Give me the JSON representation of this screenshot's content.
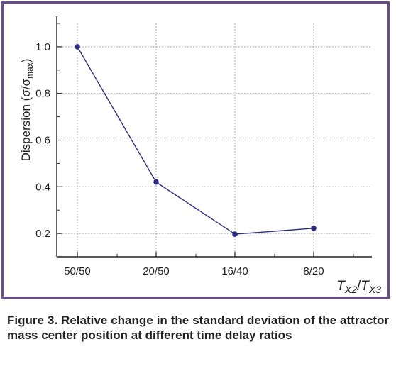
{
  "chart_data": {
    "type": "line",
    "categories": [
      "50/50",
      "20/50",
      "16/40",
      "8/20"
    ],
    "values": [
      1.0,
      0.42,
      0.197,
      0.222
    ],
    "ylabel": "Dispersion (σ/σmax)",
    "ylabel_parts": {
      "main": "Dispersion (σ/σ",
      "sub": "max",
      "close": ")"
    },
    "xlabel": "TX2/TX3",
    "xlabel_parts": {
      "t1": "T",
      "s1": "X2",
      "slash": "/",
      "t2": "T",
      "s2": "X3"
    },
    "y_ticks": [
      "0.2",
      "0.4",
      "0.6",
      "0.8",
      "1.0"
    ],
    "ylim": [
      0.1,
      1.1
    ],
    "grid": true,
    "colors": {
      "line": "#2e2e7e",
      "marker": "#2e2e82",
      "grid": "#aaaaaa",
      "frame": "#6b4a8f"
    }
  },
  "caption": "Figure 3. Relative change in the standard deviation of the attractor mass center position at different time delay ratios"
}
